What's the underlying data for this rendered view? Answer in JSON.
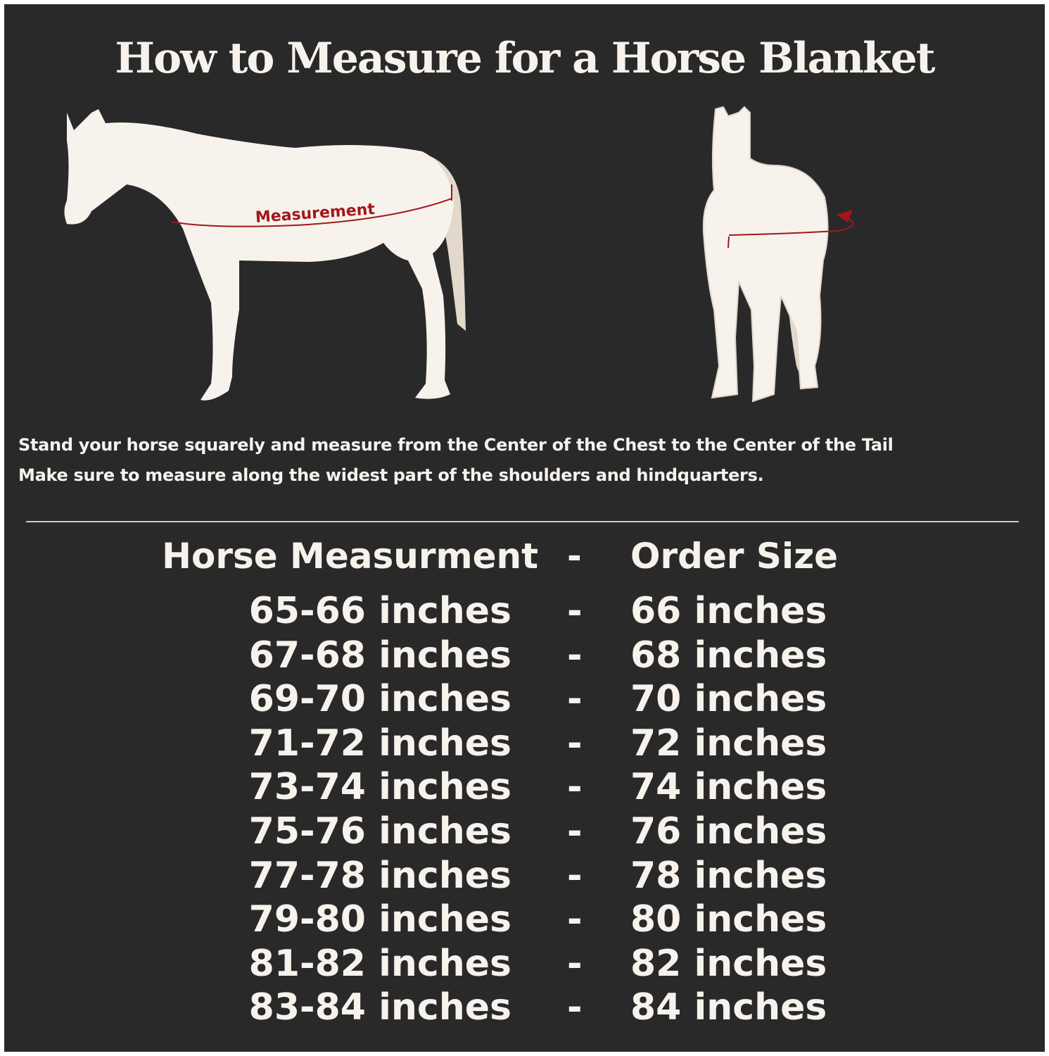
{
  "title": "How to Measure for a Horse Blanket",
  "diagram": {
    "measurement_label": "Measurement",
    "colors": {
      "background": "#2a292a",
      "horse": "#f7f2ec",
      "tail": "#e3d8cc",
      "measure_line": "#a3161a"
    }
  },
  "instructions": [
    "Stand your horse squarely and measure from the Center of the Chest to the Center of the Tail",
    "Make sure to measure along the widest part of the shoulders and hindquarters."
  ],
  "table": {
    "header": {
      "measurement": "Horse Measurment",
      "separator": "-",
      "size": "Order Size"
    },
    "rows": [
      {
        "measurement": "65-66 inches",
        "separator": "-",
        "size": "66 inches"
      },
      {
        "measurement": "67-68 inches",
        "separator": "-",
        "size": "68 inches"
      },
      {
        "measurement": "69-70 inches",
        "separator": "-",
        "size": "70 inches"
      },
      {
        "measurement": "71-72 inches",
        "separator": "-",
        "size": "72 inches"
      },
      {
        "measurement": "73-74 inches",
        "separator": "-",
        "size": "74 inches"
      },
      {
        "measurement": "75-76 inches",
        "separator": "-",
        "size": "76 inches"
      },
      {
        "measurement": "77-78 inches",
        "separator": "-",
        "size": "78 inches"
      },
      {
        "measurement": "79-80 inches",
        "separator": "-",
        "size": "80 inches"
      },
      {
        "measurement": "81-82 inches",
        "separator": "-",
        "size": "82 inches"
      },
      {
        "measurement": "83-84 inches",
        "separator": "-",
        "size": "84 inches"
      }
    ]
  }
}
